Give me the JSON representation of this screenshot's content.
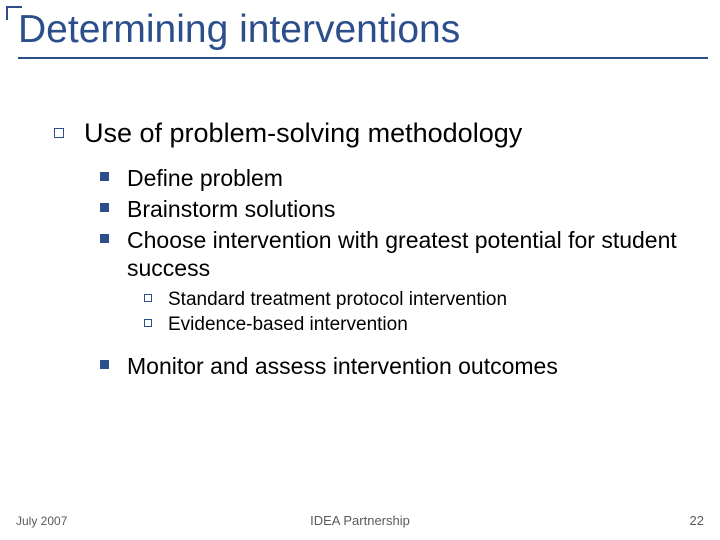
{
  "colors": {
    "accent": "#2c4f8c",
    "corner": "#2c4f8c",
    "underline": "#2c4f8c",
    "title": "#2c4f8c",
    "body_text": "#000000",
    "bullet_l1_border": "#2c4f8c",
    "bullet_l2_fill": "#2c4f8c",
    "bullet_l3_border": "#2c4f8c",
    "footer_text": "#5a5a5a",
    "background": "#ffffff"
  },
  "typography": {
    "title_fontsize": 39,
    "l1_fontsize": 27,
    "l2_fontsize": 23,
    "l3_fontsize": 19,
    "footer_fontsize": 12,
    "font_family": "Arial"
  },
  "title": "Determining interventions",
  "l1": {
    "items": [
      {
        "text": "Use of problem-solving methodology"
      }
    ]
  },
  "l2a": {
    "items": [
      {
        "text": "Define problem"
      },
      {
        "text": "Brainstorm solutions"
      },
      {
        "text": "Choose intervention with greatest potential for student success"
      }
    ]
  },
  "l3": {
    "items": [
      {
        "text": "Standard treatment protocol intervention"
      },
      {
        "text": "Evidence-based intervention"
      }
    ]
  },
  "l2b": {
    "items": [
      {
        "text": "Monitor and assess intervention outcomes"
      }
    ]
  },
  "footer": {
    "date": "July 2007",
    "org": "IDEA Partnership",
    "page": "22"
  }
}
